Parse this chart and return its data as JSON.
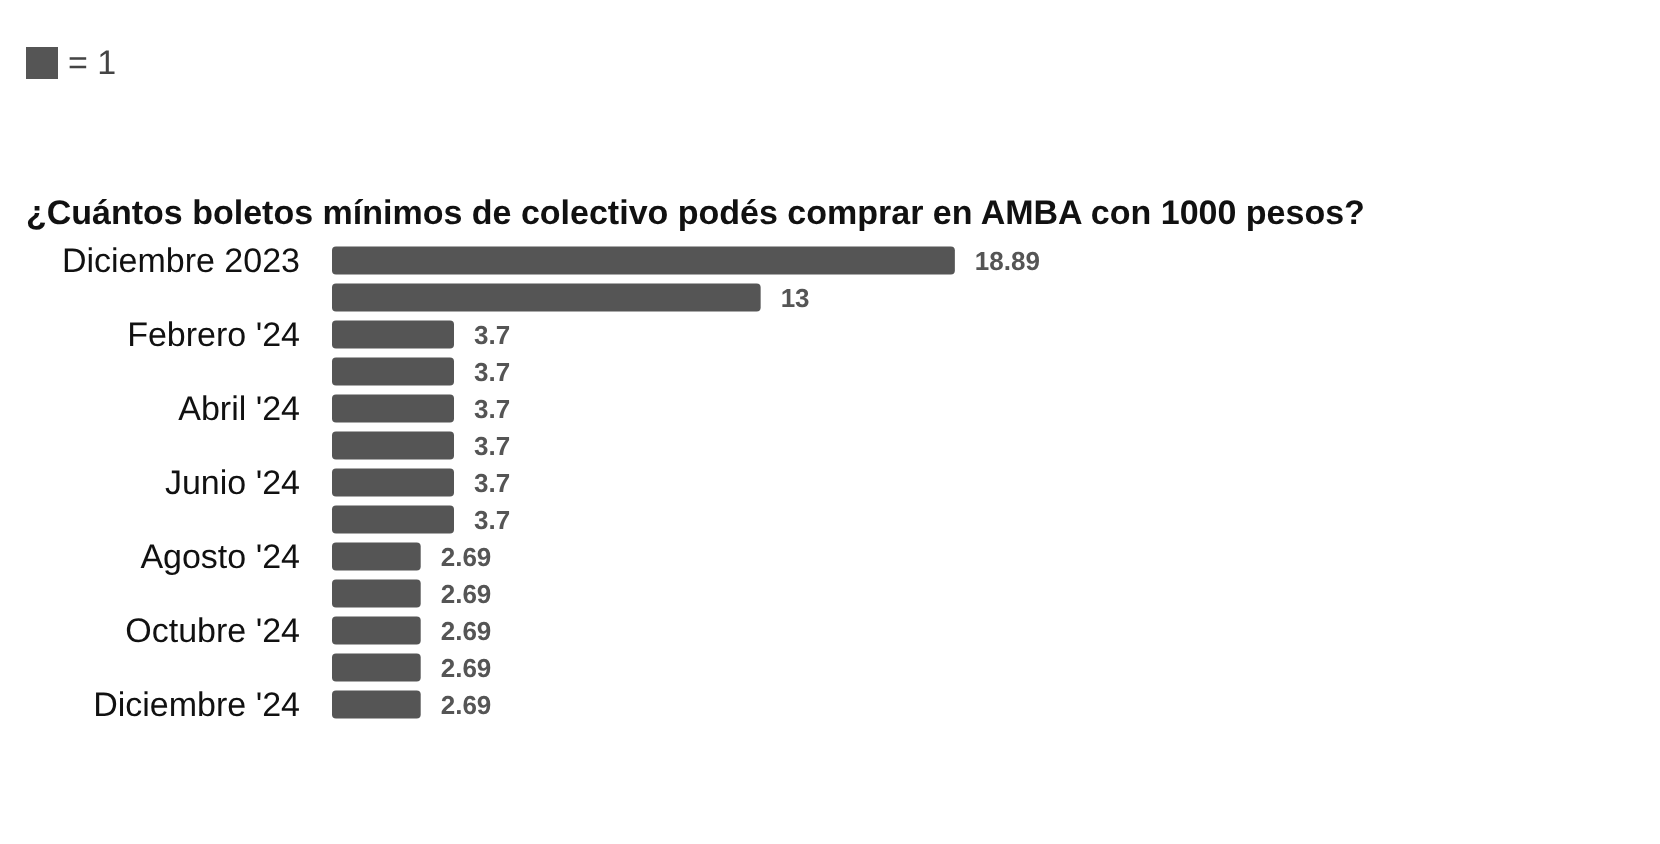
{
  "chart_data": {
    "type": "bar",
    "orientation": "horizontal",
    "title": "¿Cuántos boletos mínimos de colectivo podés comprar en AMBA con 1000 pesos?",
    "categories": [
      "Diciembre 2023",
      null,
      "Febrero '24",
      null,
      "Abril '24",
      null,
      "Junio '24",
      null,
      "Agosto '24",
      null,
      "Octubre '24",
      null,
      "Diciembre '24"
    ],
    "series": [
      {
        "name": "= 1",
        "color": "#555555",
        "values": [
          18.89,
          13,
          3.7,
          3.7,
          3.7,
          3.7,
          3.7,
          3.7,
          2.69,
          2.69,
          2.69,
          2.69,
          2.69
        ]
      }
    ],
    "data_labels": true,
    "legend": "top left"
  }
}
